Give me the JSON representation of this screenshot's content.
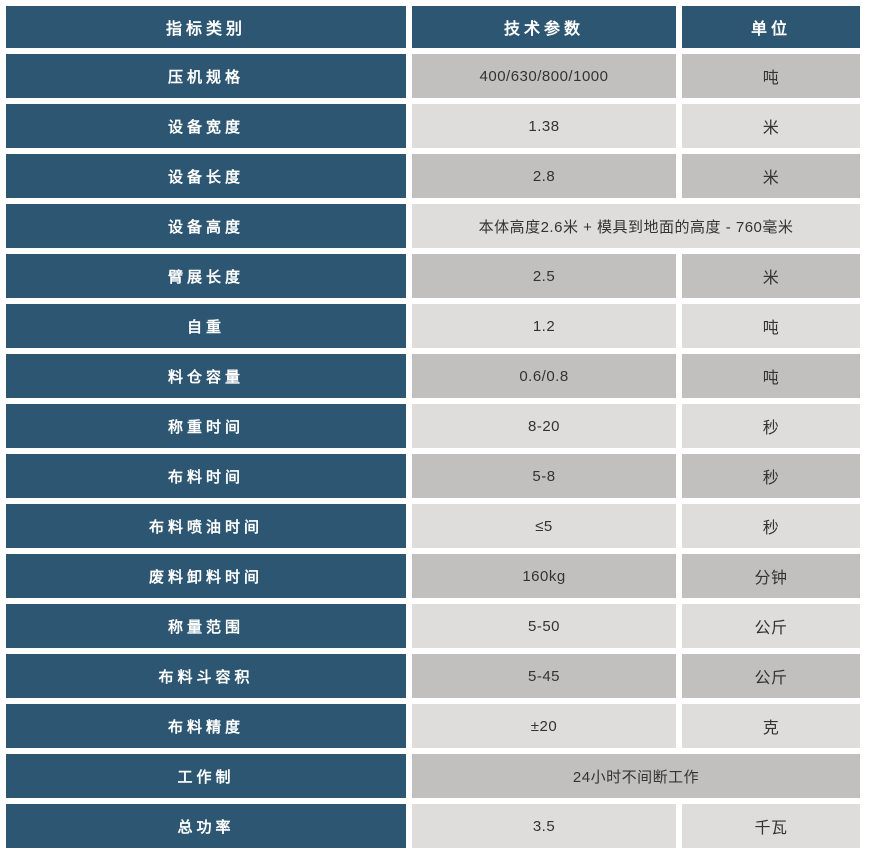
{
  "colors": {
    "header_bg": "#2c5671",
    "row_shade_dark": "#c1c0be",
    "row_shade_light": "#dedddb",
    "label_text": "#ffffff",
    "value_text": "#333333",
    "page_bg": "#ffffff"
  },
  "table": {
    "headers": [
      "指标类别",
      "技术参数",
      "单位"
    ],
    "rows": [
      {
        "label": "压机规格",
        "value": "400/630/800/1000",
        "unit": "吨"
      },
      {
        "label": "设备宽度",
        "value": "1.38",
        "unit": "米"
      },
      {
        "label": "设备长度",
        "value": "2.8",
        "unit": "米"
      },
      {
        "label": "设备高度",
        "value": "本体高度2.6米 + 模具到地面的高度 - 760毫米"
      },
      {
        "label": "臂展长度",
        "value": "2.5",
        "unit": "米"
      },
      {
        "label": "自重",
        "value": "1.2",
        "unit": "吨"
      },
      {
        "label": "料仓容量",
        "value": "0.6/0.8",
        "unit": "吨"
      },
      {
        "label": "称重时间",
        "value": "8-20",
        "unit": "秒"
      },
      {
        "label": "布料时间",
        "value": "5-8",
        "unit": "秒"
      },
      {
        "label": "布料喷油时间",
        "value": "≤5",
        "unit": "秒"
      },
      {
        "label": "废料卸料时间",
        "value": "160kg",
        "unit": "分钟"
      },
      {
        "label": "称量范围",
        "value": "5-50",
        "unit": "公斤"
      },
      {
        "label": "布料斗容积",
        "value": "5-45",
        "unit": "公斤"
      },
      {
        "label": "布料精度",
        "value": "±20",
        "unit": "克"
      },
      {
        "label": "工作制",
        "value": "24小时不间断工作"
      },
      {
        "label": "总功率",
        "value": "3.5",
        "unit": "千瓦"
      }
    ]
  }
}
